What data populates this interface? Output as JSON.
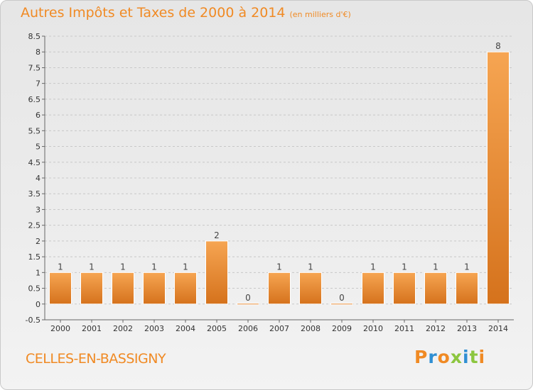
{
  "header": {
    "title": "Autres Impôts et Taxes de 2000 à 2014",
    "unit": "(en milliers d'€)"
  },
  "footer": {
    "commune": "CELLES-EN-BASSIGNY",
    "brand": "Proxiti"
  },
  "colors": {
    "accent": "#f08a24",
    "bar_light": "#f6a552",
    "bar_dark": "#d5721c",
    "logo_letters": [
      "#f08a24",
      "#2f8fd3",
      "#f08a24",
      "#8cc63f",
      "#2f8fd3",
      "#8cc63f",
      "#f08a24"
    ]
  },
  "chart_data": {
    "type": "bar",
    "categories": [
      "2000",
      "2001",
      "2002",
      "2003",
      "2004",
      "2005",
      "2006",
      "2007",
      "2008",
      "2009",
      "2010",
      "2011",
      "2012",
      "2013",
      "2014"
    ],
    "values": [
      1,
      1,
      1,
      1,
      1,
      2,
      0,
      1,
      1,
      0,
      1,
      1,
      1,
      1,
      8
    ],
    "data_labels": [
      "1",
      "1",
      "1",
      "1",
      "1",
      "2",
      "0",
      "1",
      "1",
      "0",
      "1",
      "1",
      "1",
      "1",
      "8"
    ],
    "ylim": [
      -0.5,
      8.5
    ],
    "yticks": [
      -0.5,
      0,
      0.5,
      1,
      1.5,
      2,
      2.5,
      3,
      3.5,
      4,
      4.5,
      5,
      5.5,
      6,
      6.5,
      7,
      7.5,
      8,
      8.5
    ],
    "ytick_labels": [
      "-0.5",
      "0",
      "0.5",
      "1",
      "1.5",
      "2",
      "2.5",
      "3",
      "3.5",
      "4",
      "4.5",
      "5",
      "5.5",
      "6",
      "6.5",
      "7",
      "7.5",
      "8",
      "8.5"
    ],
    "grid": true,
    "title": "Autres Impôts et Taxes de 2000 à 2014",
    "xlabel": "",
    "ylabel": ""
  }
}
